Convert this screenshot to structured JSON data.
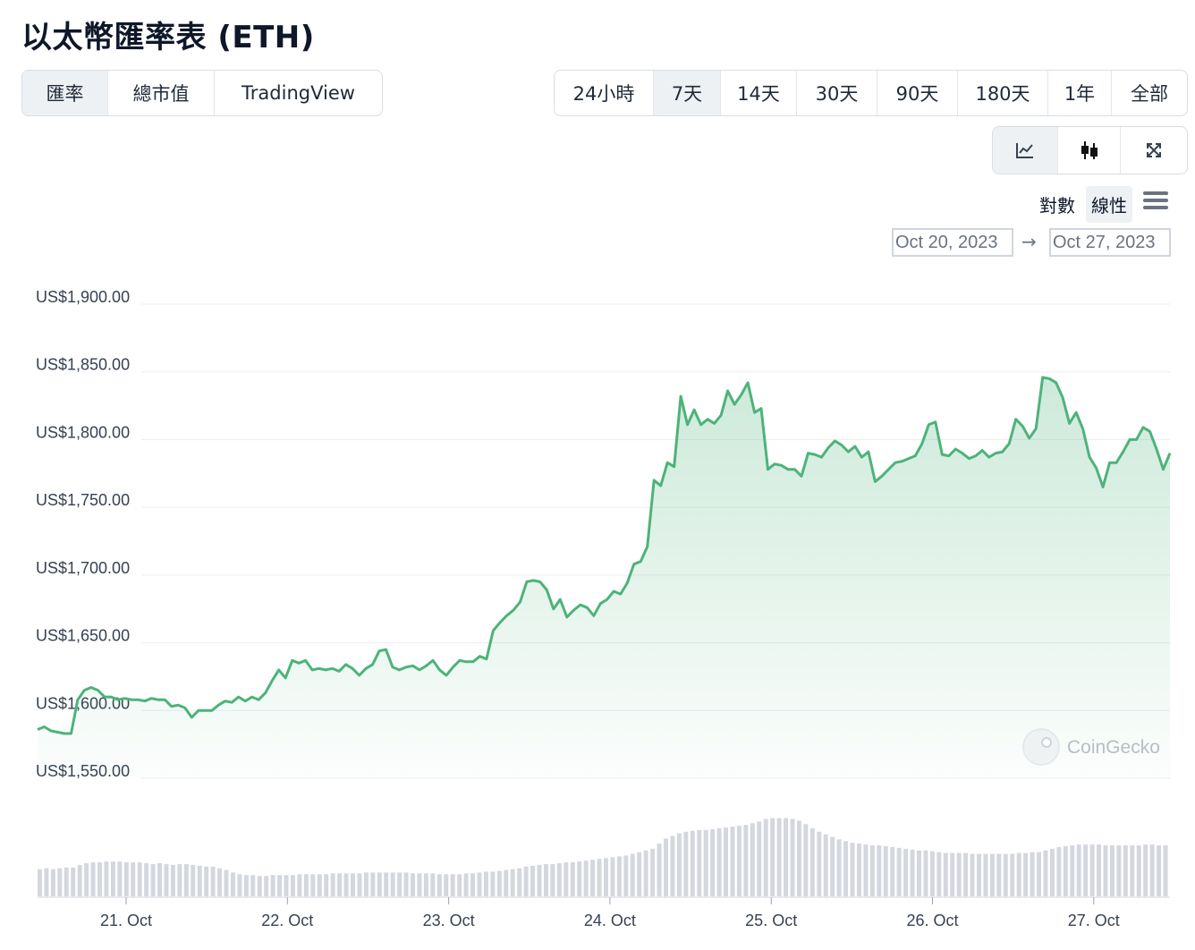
{
  "title": "以太幣匯率表 (ETH)",
  "tabs": [
    {
      "label": "匯率",
      "active": true
    },
    {
      "label": "總市值",
      "active": false
    },
    {
      "label": "TradingView",
      "active": false
    }
  ],
  "ranges": [
    {
      "label": "24小時",
      "active": false
    },
    {
      "label": "7天",
      "active": true
    },
    {
      "label": "14天",
      "active": false
    },
    {
      "label": "30天",
      "active": false
    },
    {
      "label": "90天",
      "active": false
    },
    {
      "label": "180天",
      "active": false
    },
    {
      "label": "1年",
      "active": false
    },
    {
      "label": "全部",
      "active": false
    }
  ],
  "chart_types": [
    {
      "icon": "line-chart-icon",
      "active": true
    },
    {
      "icon": "candlestick-icon",
      "active": false
    },
    {
      "icon": "fullscreen-icon",
      "active": false
    }
  ],
  "scale": {
    "log": "對數",
    "linear": "線性",
    "active": "linear",
    "menu_icon": "hamburger-menu-icon"
  },
  "date_range": {
    "from": "Oct 20, 2023",
    "to": "Oct 27, 2023",
    "arrow": "→"
  },
  "watermark": "CoinGecko",
  "colors": {
    "line": "#4db37a",
    "area": "#4db37a",
    "volume": "#d4d7de",
    "grid": "#eceef1"
  },
  "chart_data": {
    "type": "area",
    "x_start": "Oct 20, 2023",
    "x_end": "Oct 27, 2023",
    "x_ticks": [
      "21. Oct",
      "22. Oct",
      "23. Oct",
      "24. Oct",
      "25. Oct",
      "26. Oct",
      "27. Oct"
    ],
    "y_ticks": [
      "US$1,900.00",
      "US$1,850.00",
      "US$1,800.00",
      "US$1,750.00",
      "US$1,700.00",
      "US$1,650.00",
      "US$1,600.00",
      "US$1,550.00"
    ],
    "ylim": [
      1550,
      1900
    ],
    "price": [
      1586,
      1588,
      1585,
      1584,
      1583,
      1583,
      1608,
      1615,
      1617,
      1615,
      1610,
      1610,
      1608,
      1609,
      1608,
      1608,
      1607,
      1609,
      1608,
      1608,
      1603,
      1604,
      1602,
      1595,
      1600,
      1600,
      1600,
      1604,
      1607,
      1606,
      1610,
      1607,
      1610,
      1608,
      1613,
      1622,
      1630,
      1624,
      1637,
      1635,
      1637,
      1630,
      1631,
      1630,
      1631,
      1629,
      1634,
      1631,
      1626,
      1631,
      1634,
      1644,
      1645,
      1632,
      1630,
      1632,
      1633,
      1630,
      1633,
      1637,
      1630,
      1626,
      1632,
      1637,
      1636,
      1636,
      1640,
      1638,
      1659,
      1665,
      1670,
      1674,
      1680,
      1695,
      1696,
      1695,
      1689,
      1675,
      1682,
      1669,
      1674,
      1678,
      1676,
      1670,
      1679,
      1682,
      1688,
      1686,
      1694,
      1708,
      1710,
      1721,
      1770,
      1766,
      1783,
      1780,
      1832,
      1811,
      1822,
      1811,
      1815,
      1812,
      1818,
      1836,
      1826,
      1833,
      1842,
      1820,
      1823,
      1778,
      1782,
      1781,
      1778,
      1778,
      1773,
      1790,
      1789,
      1787,
      1794,
      1799,
      1796,
      1791,
      1795,
      1787,
      1791,
      1769,
      1773,
      1778,
      1783,
      1784,
      1786,
      1788,
      1797,
      1811,
      1813,
      1789,
      1788,
      1793,
      1790,
      1786,
      1788,
      1792,
      1787,
      1790,
      1791,
      1797,
      1815,
      1810,
      1801,
      1808,
      1846,
      1845,
      1842,
      1831,
      1812,
      1820,
      1808,
      1787,
      1779,
      1765,
      1783,
      1783,
      1791,
      1800,
      1800,
      1809,
      1806,
      1793,
      1778,
      1790
    ],
    "volume": [
      0.32,
      0.33,
      0.32,
      0.33,
      0.34,
      0.34,
      0.37,
      0.39,
      0.4,
      0.4,
      0.41,
      0.41,
      0.41,
      0.4,
      0.4,
      0.4,
      0.39,
      0.38,
      0.39,
      0.38,
      0.37,
      0.38,
      0.38,
      0.37,
      0.36,
      0.35,
      0.35,
      0.33,
      0.31,
      0.28,
      0.26,
      0.25,
      0.25,
      0.24,
      0.24,
      0.25,
      0.25,
      0.25,
      0.25,
      0.26,
      0.26,
      0.26,
      0.26,
      0.26,
      0.27,
      0.27,
      0.27,
      0.27,
      0.27,
      0.28,
      0.28,
      0.28,
      0.28,
      0.28,
      0.28,
      0.28,
      0.27,
      0.27,
      0.27,
      0.27,
      0.26,
      0.26,
      0.26,
      0.26,
      0.27,
      0.27,
      0.28,
      0.29,
      0.29,
      0.3,
      0.31,
      0.32,
      0.33,
      0.35,
      0.36,
      0.37,
      0.38,
      0.38,
      0.39,
      0.4,
      0.4,
      0.41,
      0.42,
      0.43,
      0.44,
      0.45,
      0.46,
      0.47,
      0.48,
      0.5,
      0.52,
      0.54,
      0.56,
      0.62,
      0.68,
      0.71,
      0.74,
      0.76,
      0.77,
      0.78,
      0.78,
      0.79,
      0.8,
      0.81,
      0.82,
      0.83,
      0.84,
      0.86,
      0.88,
      0.91,
      0.92,
      0.92,
      0.92,
      0.91,
      0.89,
      0.85,
      0.8,
      0.76,
      0.73,
      0.7,
      0.67,
      0.65,
      0.63,
      0.62,
      0.61,
      0.6,
      0.6,
      0.59,
      0.58,
      0.57,
      0.56,
      0.55,
      0.54,
      0.54,
      0.53,
      0.52,
      0.51,
      0.51,
      0.51,
      0.51,
      0.5,
      0.5,
      0.5,
      0.5,
      0.5,
      0.5,
      0.5,
      0.51,
      0.51,
      0.52,
      0.52,
      0.54,
      0.56,
      0.58,
      0.59,
      0.6,
      0.61,
      0.61,
      0.61,
      0.61,
      0.6,
      0.6,
      0.6,
      0.6,
      0.6,
      0.6,
      0.61,
      0.61,
      0.6,
      0.6
    ]
  }
}
